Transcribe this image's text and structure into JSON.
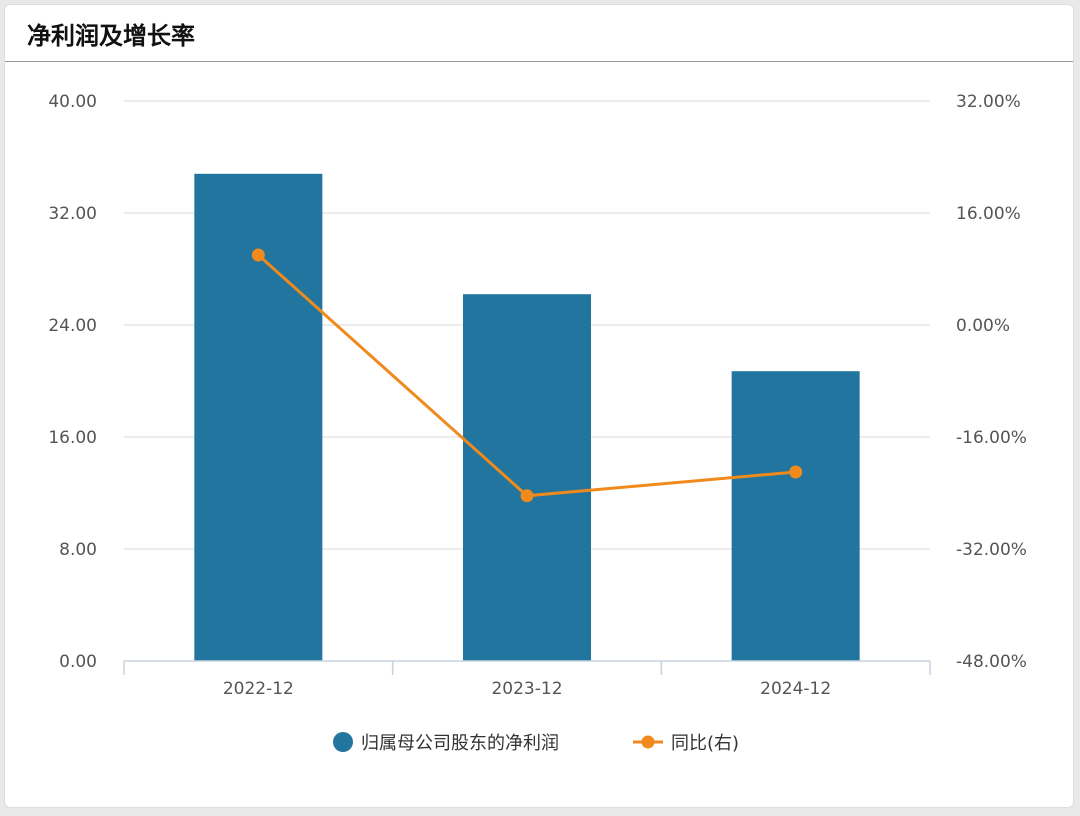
{
  "title": "净利润及增长率",
  "chart_data": {
    "type": "bar+line",
    "categories": [
      "2022-12",
      "2023-12",
      "2024-12"
    ],
    "series": [
      {
        "name": "归属母公司股东的净利润",
        "type": "bar",
        "axis": "left",
        "color": "#21759f",
        "values": [
          34.8,
          26.2,
          20.7
        ]
      },
      {
        "name": "同比(右)",
        "type": "line",
        "axis": "right",
        "color": "#f08a1c",
        "values": [
          10.0,
          -24.4,
          -21.0
        ]
      }
    ],
    "left_axis": {
      "ylim": [
        0,
        40
      ],
      "ticks": [
        "0.00",
        "8.00",
        "16.00",
        "24.00",
        "32.00",
        "40.00"
      ]
    },
    "right_axis": {
      "ylim": [
        -48,
        32
      ],
      "ticks": [
        "-48.00%",
        "-32.00%",
        "-16.00%",
        "0.00%",
        "16.00%",
        "32.00%"
      ]
    },
    "grid": true,
    "legend": "bottom"
  }
}
